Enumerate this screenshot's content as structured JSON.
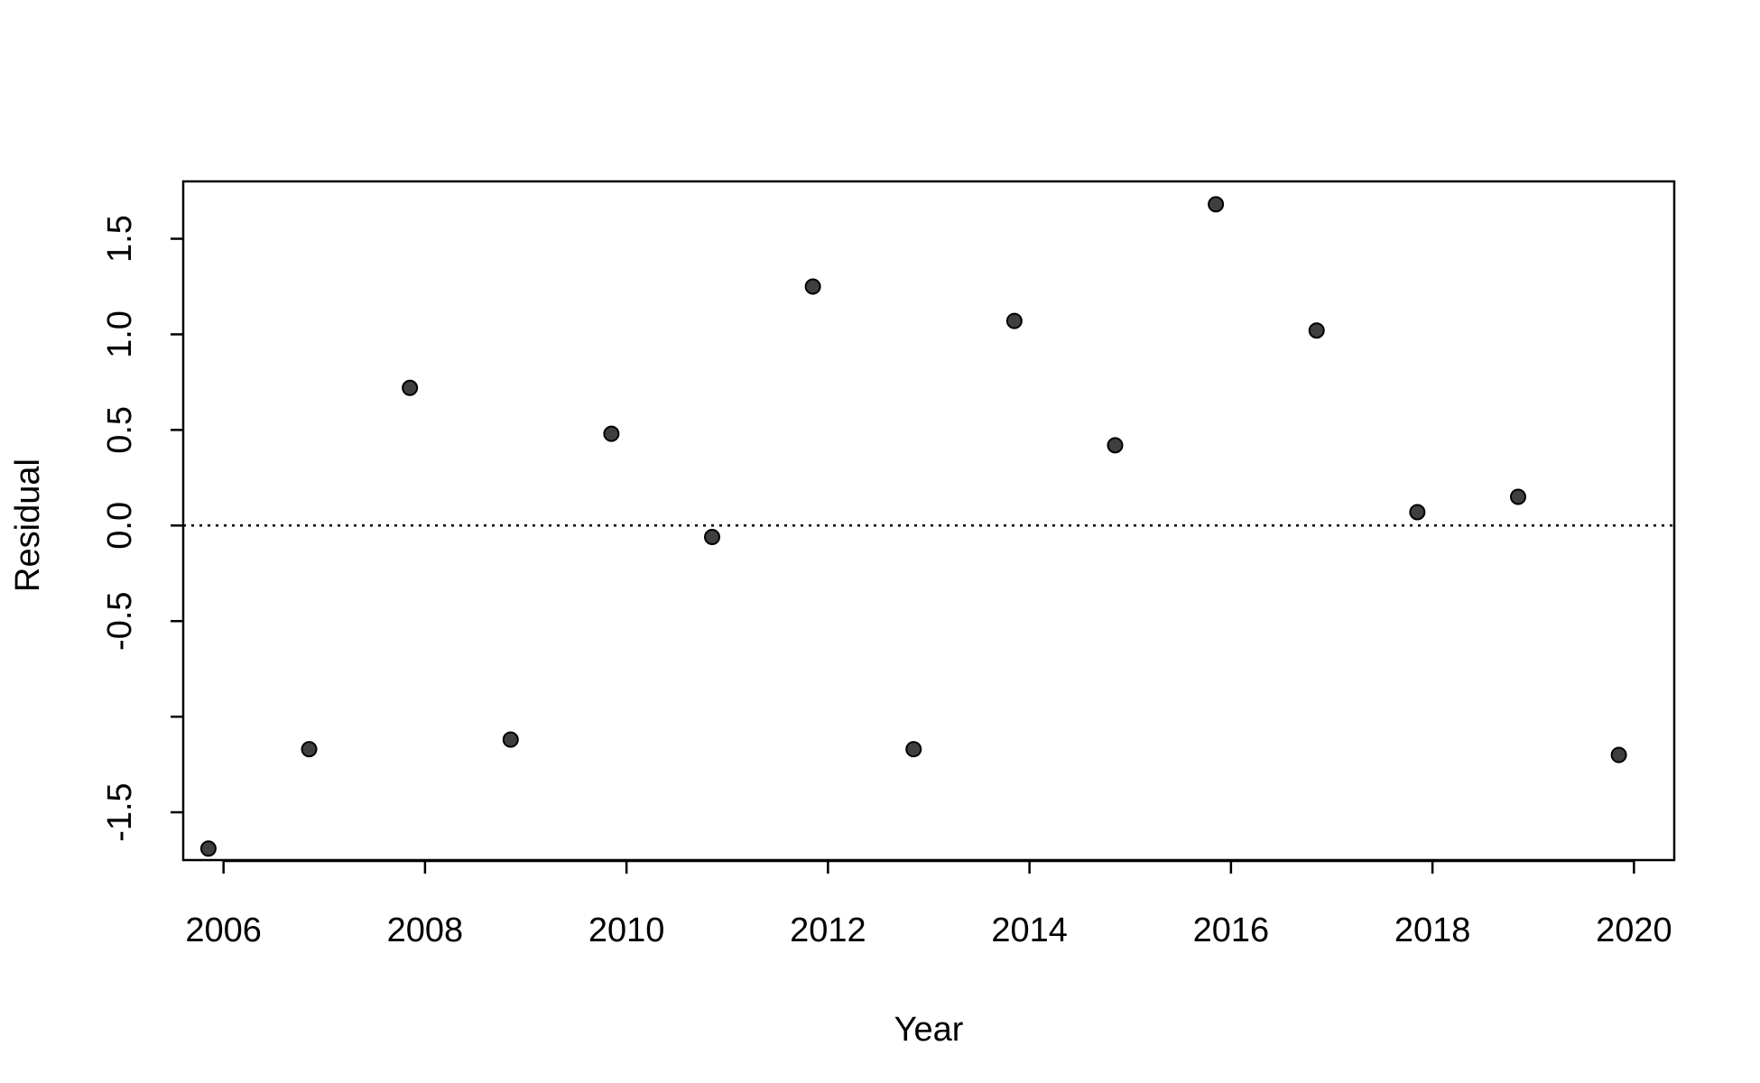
{
  "chart_data": {
    "type": "scatter",
    "title": "",
    "xlabel": "Year",
    "ylabel": "Residual",
    "xlim": [
      2005.6,
      2020.4
    ],
    "ylim": [
      -1.75,
      1.8
    ],
    "x_ticks": [
      2006,
      2008,
      2010,
      2012,
      2014,
      2016,
      2018,
      2020
    ],
    "x_tick_labels": [
      "2006",
      "2008",
      "2010",
      "2012",
      "2014",
      "2016",
      "2018",
      "2020"
    ],
    "y_ticks": [
      -1.5,
      -1.0,
      -0.5,
      0.0,
      0.5,
      1.0,
      1.5
    ],
    "y_tick_labels": [
      "-1.5",
      "",
      "-0.5",
      "0.0",
      "0.5",
      "1.0",
      "1.5"
    ],
    "reference_line": {
      "y": 0.0,
      "style": "dotted",
      "color": "#000000"
    },
    "grid": false,
    "marker_color": "#3f3f3f",
    "points": [
      {
        "x": 2005.85,
        "y": -1.69
      },
      {
        "x": 2006.85,
        "y": -1.17
      },
      {
        "x": 2007.85,
        "y": 0.72
      },
      {
        "x": 2008.85,
        "y": -1.12
      },
      {
        "x": 2009.85,
        "y": 0.48
      },
      {
        "x": 2010.85,
        "y": -0.06
      },
      {
        "x": 2011.85,
        "y": 1.25
      },
      {
        "x": 2012.85,
        "y": -1.17
      },
      {
        "x": 2013.85,
        "y": 1.07
      },
      {
        "x": 2014.85,
        "y": 0.42
      },
      {
        "x": 2015.85,
        "y": 1.68
      },
      {
        "x": 2016.85,
        "y": 1.02
      },
      {
        "x": 2017.85,
        "y": 0.07
      },
      {
        "x": 2018.85,
        "y": 0.15
      },
      {
        "x": 2019.85,
        "y": -1.2
      }
    ]
  }
}
